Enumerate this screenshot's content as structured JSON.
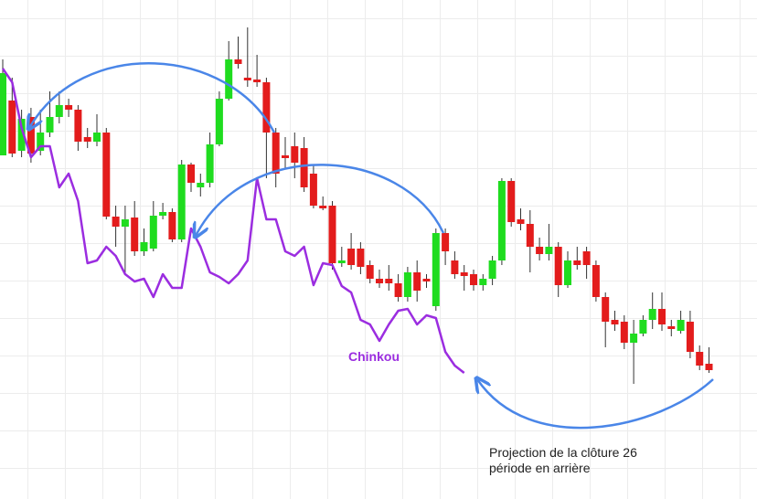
{
  "chart_data": {
    "type": "candlestick",
    "ylim": [
      0,
      546
    ],
    "up_color": "#1fdc1f",
    "down_color": "#e31c1c",
    "open": [
      376,
      436,
      381,
      418,
      381,
      401,
      418,
      431,
      426,
      396,
      391,
      401,
      309,
      298,
      308,
      271,
      274,
      310,
      314,
      284,
      366,
      341,
      346,
      388,
      438,
      481,
      461,
      459,
      456,
      401,
      376,
      386,
      384,
      356,
      321,
      321,
      258,
      274,
      274,
      256,
      241,
      241,
      236,
      221,
      248,
      241,
      211,
      291,
      261,
      248,
      246,
      234,
      241,
      261,
      348,
      306,
      301,
      276,
      268,
      276,
      234,
      261,
      271,
      256,
      221,
      196,
      194,
      171,
      181,
      196,
      208,
      189,
      184,
      194,
      161,
      148
    ],
    "high": [
      481,
      461,
      426,
      428,
      426,
      446,
      446,
      438,
      431,
      406,
      421,
      406,
      321,
      321,
      326,
      296,
      326,
      324,
      318,
      371,
      368,
      356,
      401,
      446,
      501,
      506,
      516,
      486,
      461,
      406,
      396,
      401,
      396,
      366,
      331,
      326,
      276,
      291,
      281,
      261,
      251,
      256,
      246,
      254,
      261,
      246,
      296,
      296,
      271,
      256,
      251,
      246,
      266,
      351,
      351,
      318,
      316,
      286,
      301,
      281,
      271,
      276,
      276,
      261,
      226,
      206,
      201,
      196,
      201,
      226,
      226,
      196,
      206,
      206,
      168,
      166
    ],
    "low": [
      376,
      374,
      374,
      368,
      376,
      396,
      411,
      418,
      381,
      384,
      386,
      306,
      276,
      248,
      266,
      266,
      271,
      306,
      281,
      281,
      336,
      331,
      341,
      386,
      436,
      471,
      451,
      451,
      351,
      341,
      361,
      351,
      336,
      318,
      316,
      251,
      254,
      251,
      246,
      236,
      231,
      228,
      216,
      216,
      216,
      231,
      206,
      256,
      241,
      228,
      228,
      228,
      234,
      256,
      298,
      294,
      248,
      261,
      261,
      221,
      231,
      251,
      241,
      216,
      166,
      184,
      164,
      126,
      178,
      186,
      184,
      178,
      181,
      154,
      141,
      138
    ],
    "close": [
      466,
      378,
      416,
      378,
      401,
      418,
      431,
      426,
      391,
      391,
      401,
      309,
      298,
      306,
      271,
      281,
      310,
      314,
      284,
      366,
      346,
      346,
      388,
      438,
      481,
      476,
      458,
      456,
      401,
      356,
      373,
      368,
      341,
      321,
      318,
      258,
      261,
      256,
      254,
      241,
      236,
      236,
      221,
      248,
      228,
      238,
      291,
      271,
      246,
      244,
      234,
      241,
      261,
      348,
      303,
      301,
      276,
      268,
      276,
      234,
      261,
      256,
      256,
      221,
      194,
      191,
      171,
      181,
      196,
      208,
      191,
      186,
      196,
      161,
      146,
      141
    ],
    "chinkou": {
      "name": "Chinkou",
      "color": "#9b2de0",
      "values": [
        471,
        456,
        406,
        374,
        386,
        386,
        341,
        356,
        326,
        258,
        261,
        276,
        266,
        246,
        238,
        241,
        221,
        246,
        231,
        231,
        296,
        276,
        248,
        243,
        236,
        246,
        261,
        351,
        306,
        306,
        271,
        266,
        276,
        234,
        258,
        256,
        233,
        226,
        196,
        191,
        173,
        191,
        206,
        208,
        191,
        201,
        198,
        161,
        146,
        138,
        null,
        null,
        null,
        null,
        null,
        null,
        null,
        null,
        null,
        null,
        null,
        null,
        null,
        null,
        null,
        null,
        null,
        null,
        null,
        null,
        null,
        null,
        null,
        null,
        null,
        null
      ]
    },
    "annotations": [
      "Projection de la clôture 26",
      "période en arrière"
    ]
  }
}
